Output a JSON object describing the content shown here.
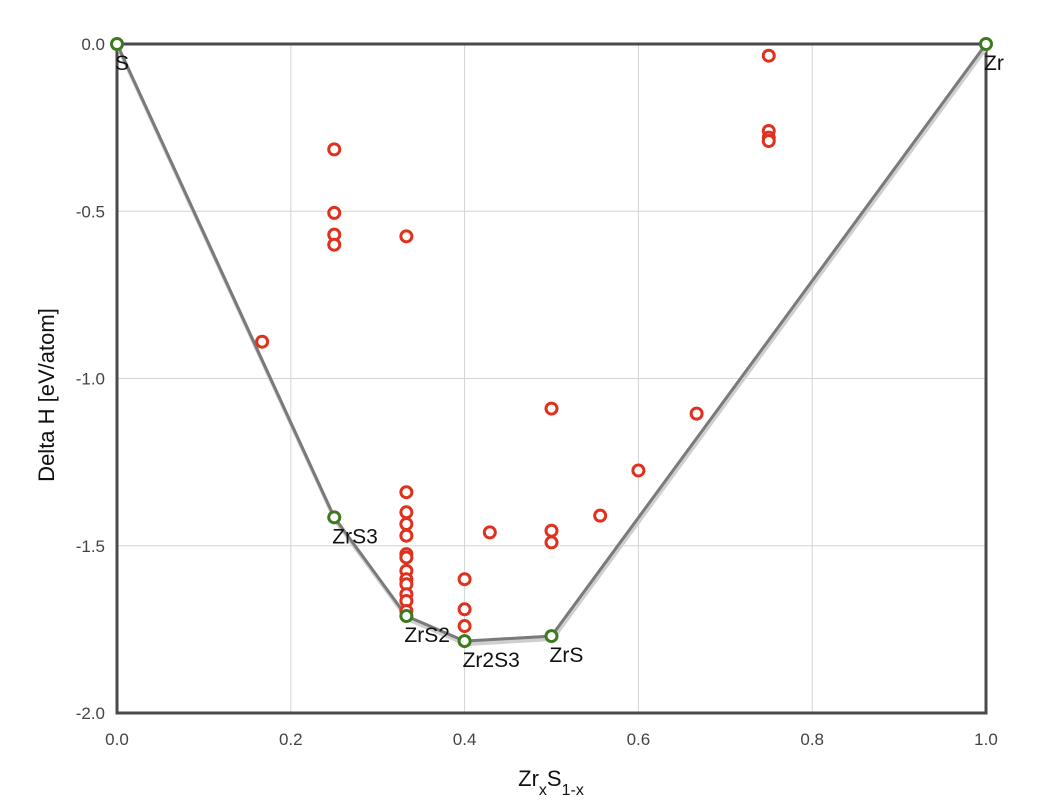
{
  "chart_data": {
    "type": "scatter",
    "xlabel": {
      "base": "Zr",
      "sub1": "x",
      "mid": "S",
      "sub2": "1-x"
    },
    "ylabel": "Delta H [eV/atom]",
    "xlim": [
      0,
      1
    ],
    "ylim": [
      -2,
      0
    ],
    "x_ticks": [
      "0.0",
      "0.2",
      "0.4",
      "0.6",
      "0.8",
      "1.0"
    ],
    "x_tick_values": [
      0,
      0.2,
      0.4,
      0.6,
      0.8,
      1.0
    ],
    "y_ticks": [
      "0.0",
      "-0.5",
      "-1.0",
      "-1.5",
      "-2.0"
    ],
    "y_tick_values": [
      0,
      -0.5,
      -1.0,
      -1.5,
      -2.0
    ],
    "grid": true,
    "colors": {
      "hull": "#7a7a7a",
      "stable": "#3d7a1f",
      "unstable": "#e0301e",
      "frame": "#4a4a4a",
      "grid": "#d4d4d4"
    },
    "hull": [
      {
        "label": "S",
        "x": 0.0,
        "y": 0.0
      },
      {
        "label": "ZrS3",
        "x": 0.25,
        "y": -1.415
      },
      {
        "label": "ZrS2",
        "x": 0.333,
        "y": -1.71
      },
      {
        "label": "Zr2S3",
        "x": 0.4,
        "y": -1.785
      },
      {
        "label": "ZrS",
        "x": 0.5,
        "y": -1.77
      },
      {
        "label": "Zr",
        "x": 1.0,
        "y": 0.0
      }
    ],
    "unstable": [
      {
        "x": 0.167,
        "y": -0.89
      },
      {
        "x": 0.25,
        "y": -0.315
      },
      {
        "x": 0.25,
        "y": -0.505
      },
      {
        "x": 0.25,
        "y": -0.57
      },
      {
        "x": 0.25,
        "y": -0.6
      },
      {
        "x": 0.333,
        "y": -0.575
      },
      {
        "x": 0.333,
        "y": -1.34
      },
      {
        "x": 0.333,
        "y": -1.4
      },
      {
        "x": 0.333,
        "y": -1.435
      },
      {
        "x": 0.333,
        "y": -1.47
      },
      {
        "x": 0.333,
        "y": -1.525
      },
      {
        "x": 0.333,
        "y": -1.535
      },
      {
        "x": 0.333,
        "y": -1.575
      },
      {
        "x": 0.333,
        "y": -1.6
      },
      {
        "x": 0.333,
        "y": -1.615
      },
      {
        "x": 0.333,
        "y": -1.645
      },
      {
        "x": 0.333,
        "y": -1.665
      },
      {
        "x": 0.333,
        "y": -1.695
      },
      {
        "x": 0.4,
        "y": -1.6
      },
      {
        "x": 0.4,
        "y": -1.69
      },
      {
        "x": 0.4,
        "y": -1.74
      },
      {
        "x": 0.429,
        "y": -1.46
      },
      {
        "x": 0.5,
        "y": -1.09
      },
      {
        "x": 0.5,
        "y": -1.455
      },
      {
        "x": 0.5,
        "y": -1.49
      },
      {
        "x": 0.556,
        "y": -1.41
      },
      {
        "x": 0.6,
        "y": -1.275
      },
      {
        "x": 0.667,
        "y": -1.105
      },
      {
        "x": 0.75,
        "y": -0.035
      },
      {
        "x": 0.75,
        "y": -0.26
      },
      {
        "x": 0.75,
        "y": -0.28
      },
      {
        "x": 0.75,
        "y": -0.29
      }
    ]
  }
}
